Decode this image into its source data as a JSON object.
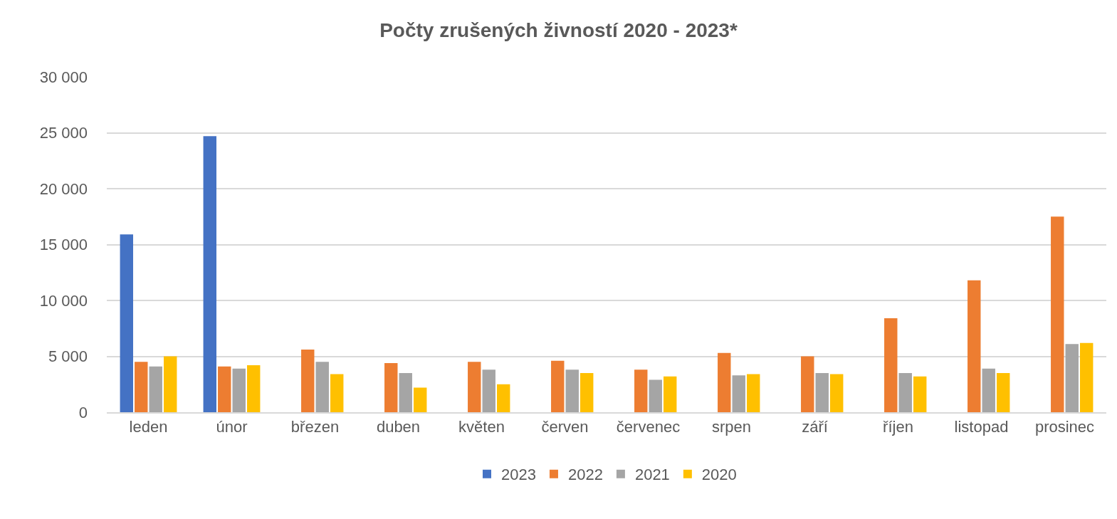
{
  "chart_data": {
    "type": "bar",
    "title": "Počty zrušených živností 2020 - 2023*",
    "categories": [
      "leden",
      "únor",
      "březen",
      "duben",
      "květen",
      "červen",
      "červenec",
      "srpen",
      "září",
      "říjen",
      "listopad",
      "prosinec"
    ],
    "series": [
      {
        "name": "2023",
        "color": "#4472c4",
        "values": [
          15900,
          24700,
          null,
          null,
          null,
          null,
          null,
          null,
          null,
          null,
          null,
          null
        ]
      },
      {
        "name": "2022",
        "color": "#ed7d31",
        "values": [
          4500,
          4100,
          5600,
          4400,
          4500,
          4600,
          3800,
          5300,
          5000,
          8400,
          11800,
          17500
        ]
      },
      {
        "name": "2021",
        "color": "#a5a5a5",
        "values": [
          4100,
          3900,
          4500,
          3500,
          3800,
          3800,
          2900,
          3300,
          3500,
          3500,
          3900,
          6100
        ]
      },
      {
        "name": "2020",
        "color": "#ffc000",
        "values": [
          5000,
          4200,
          3400,
          2200,
          2500,
          3500,
          3200,
          3400,
          3400,
          3200,
          3500,
          6200
        ]
      }
    ],
    "ylim": [
      0,
      30000
    ],
    "yticks": [
      0,
      {
        "value": 5000,
        "label": "5 000"
      },
      {
        "value": 10000,
        "label": "10 000"
      },
      {
        "value": 15000,
        "label": "15 000"
      },
      {
        "value": 20000,
        "label": "20 000"
      },
      {
        "value": 25000,
        "label": "25 000"
      },
      {
        "value": 30000,
        "label": "30 000"
      }
    ],
    "grid": "y",
    "legend": "bottom"
  }
}
